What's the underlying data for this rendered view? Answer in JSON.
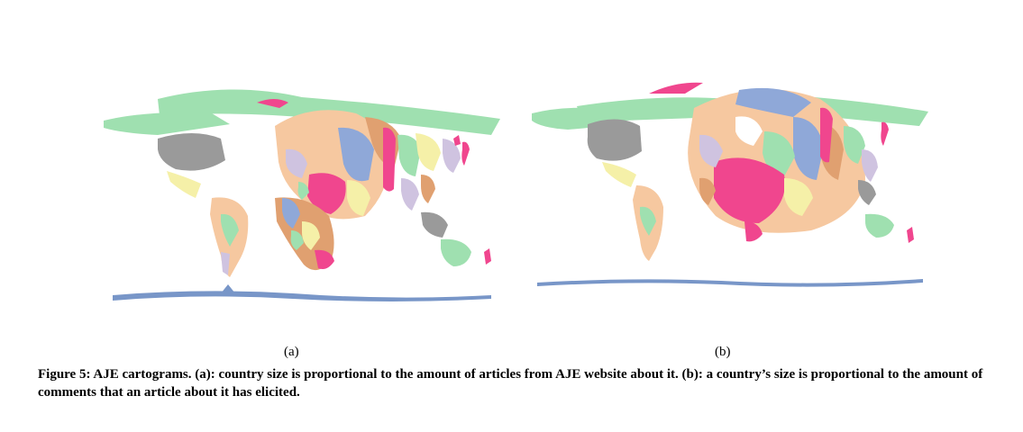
{
  "figure": {
    "panel_a_label": "(a)",
    "panel_b_label": "(b)",
    "caption": "Figure 5: AJE cartograms. (a): country size is proportional to the amount of articles from AJE website about it. (b): a country’s size is proportional to the amount of comments that an article about it has elicited."
  },
  "colors": {
    "pink": "#f0468e",
    "blue": "#8fa8d8",
    "green": "#9fe0b0",
    "orange": "#e0a070",
    "peach": "#f6c8a0",
    "yellow": "#f5f0a8",
    "lavender": "#cfc3e0",
    "gray": "#9a9a9a",
    "ice": "#7896c8"
  }
}
